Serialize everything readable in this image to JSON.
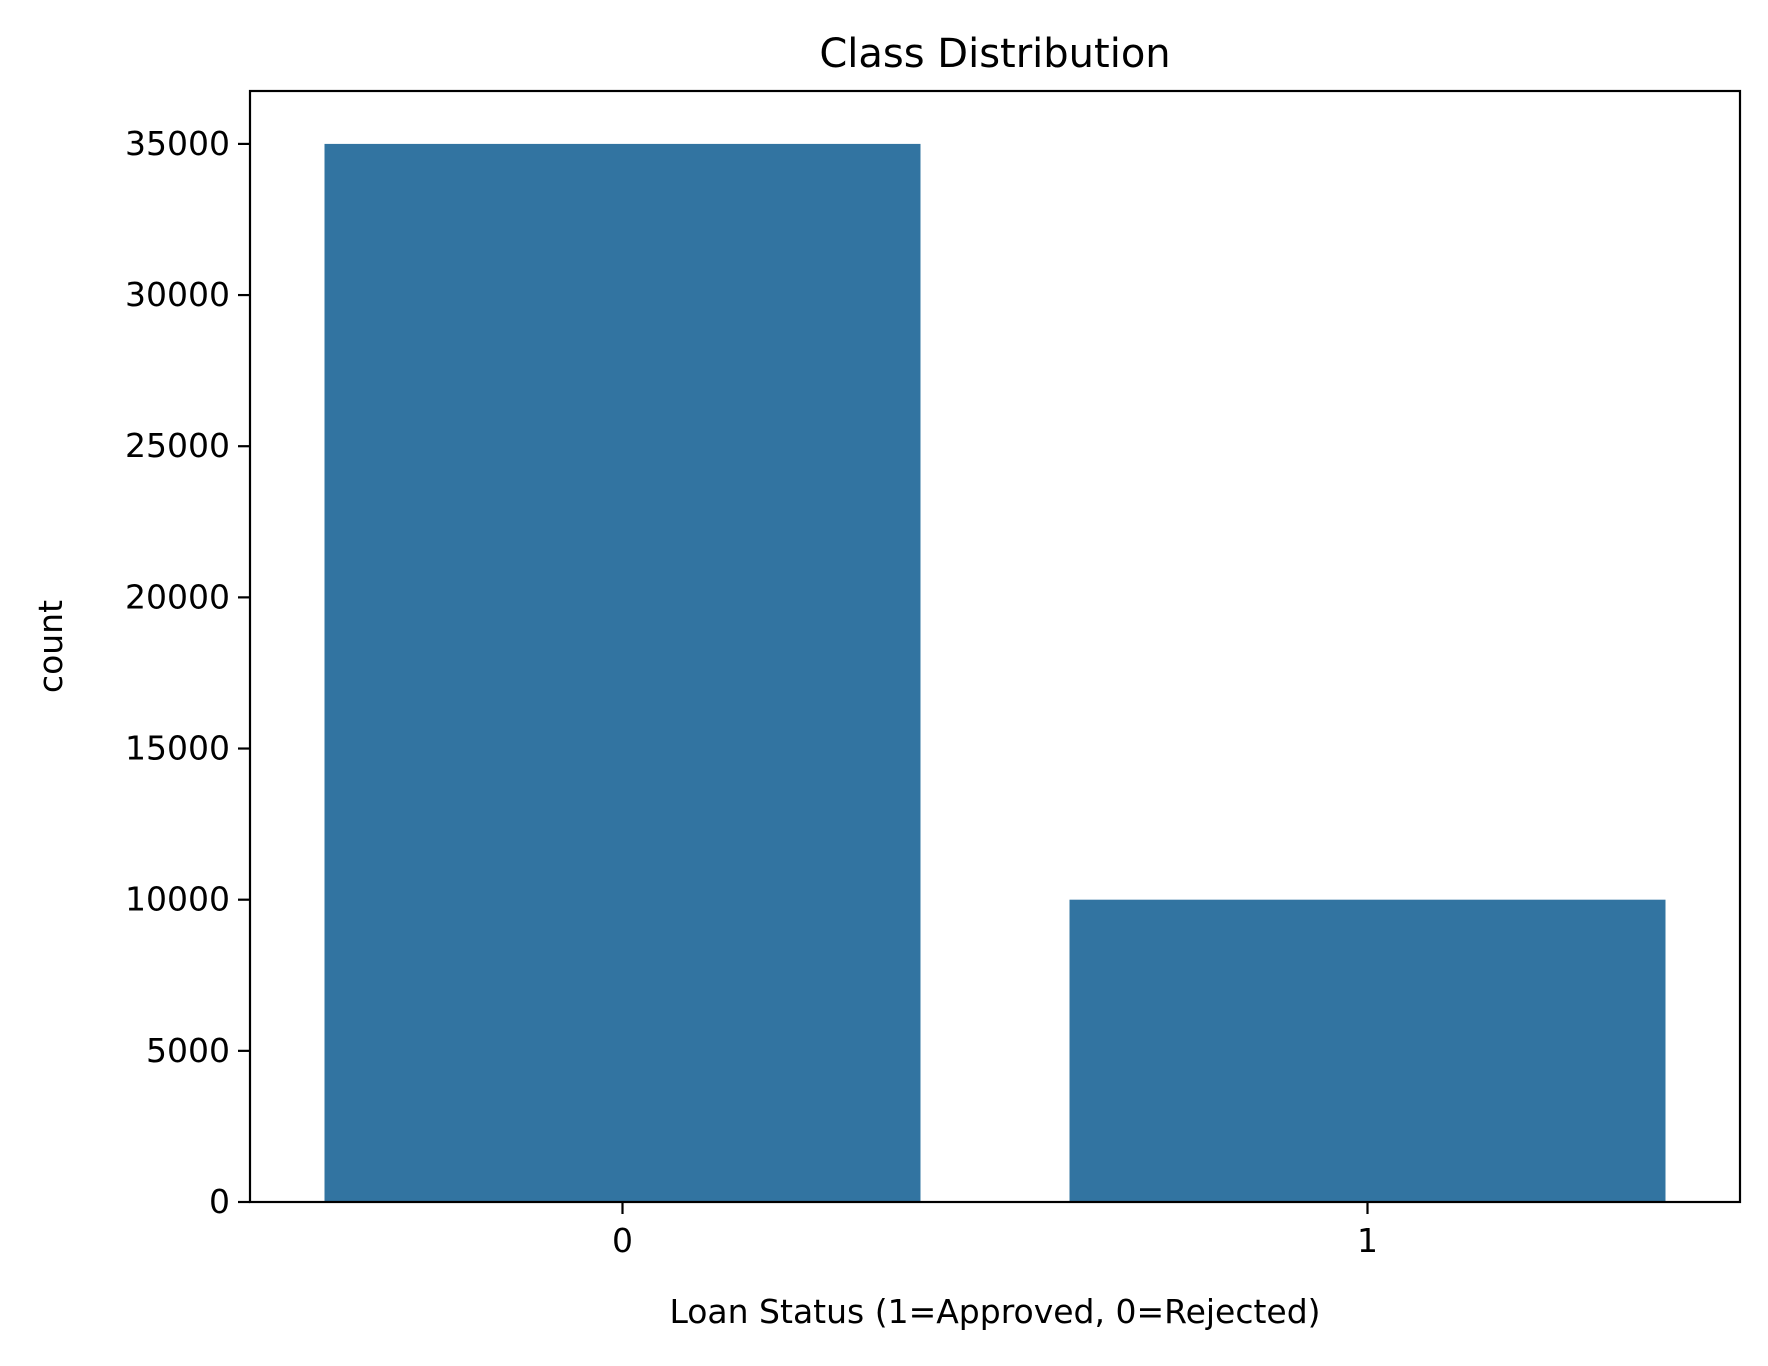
{
  "chart_data": {
    "type": "bar",
    "title": "Class Distribution",
    "xlabel": "Loan Status (1=Approved, 0=Rejected)",
    "ylabel": "count",
    "categories": [
      "0",
      "1"
    ],
    "values": [
      35000,
      10000
    ],
    "ylim": [
      0,
      36750
    ],
    "yticks": [
      0,
      5000,
      10000,
      15000,
      20000,
      25000,
      30000,
      35000
    ],
    "ytick_labels": [
      "0",
      "5000",
      "10000",
      "15000",
      "20000",
      "25000",
      "30000",
      "35000"
    ],
    "bar_color": "#3274a1",
    "grid": false,
    "legend": "none"
  }
}
